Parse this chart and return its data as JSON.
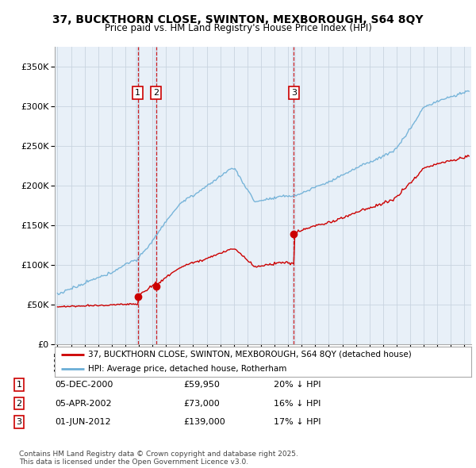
{
  "title": "37, BUCKTHORN CLOSE, SWINTON, MEXBOROUGH, S64 8QY",
  "subtitle": "Price paid vs. HM Land Registry's House Price Index (HPI)",
  "hpi_color": "#6baed6",
  "price_color": "#cc0000",
  "plot_bg": "#e8f0f8",
  "grid_color": "#c8d4e0",
  "purchases": [
    {
      "date_num": 2000.92,
      "price": 59950,
      "label": "1",
      "date_str": "05-DEC-2000",
      "pct": "20% ↓ HPI"
    },
    {
      "date_num": 2002.27,
      "price": 73000,
      "label": "2",
      "date_str": "05-APR-2002",
      "pct": "16% ↓ HPI"
    },
    {
      "date_num": 2012.42,
      "price": 139000,
      "label": "3",
      "date_str": "01-JUN-2012",
      "pct": "17% ↓ HPI"
    }
  ],
  "legend_line1": "37, BUCKTHORN CLOSE, SWINTON, MEXBOROUGH, S64 8QY (detached house)",
  "legend_line2": "HPI: Average price, detached house, Rotherham",
  "footer": "Contains HM Land Registry data © Crown copyright and database right 2025.\nThis data is licensed under the Open Government Licence v3.0.",
  "ylim": [
    0,
    375000
  ],
  "xlim_start": 1994.8,
  "xlim_end": 2025.5,
  "yticks": [
    0,
    50000,
    100000,
    150000,
    200000,
    250000,
    300000,
    350000
  ],
  "ytick_labels": [
    "£0",
    "£50K",
    "£100K",
    "£150K",
    "£200K",
    "£250K",
    "£300K",
    "£350K"
  ]
}
